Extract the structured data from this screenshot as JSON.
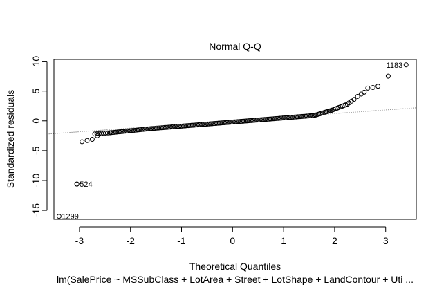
{
  "chart_data": {
    "type": "scatter",
    "title": "Normal Q-Q",
    "xlabel": "Theoretical Quantiles",
    "ylabel": "Standardized residuals",
    "subtitle": "lm(SalePrice ~ MSSubClass + LotArea + Street + LotShape + LandContour + Uti ...",
    "xlim": [
      -3.5,
      3.6
    ],
    "ylim": [
      -16.5,
      10.3
    ],
    "x_ticks": [
      -3,
      -2,
      -1,
      0,
      1,
      2,
      3
    ],
    "y_ticks": [
      -15,
      -10,
      -5,
      0,
      5,
      10
    ],
    "grid": false,
    "reference_line": {
      "x": [
        -3.6,
        3.6
      ],
      "y": [
        -2.2,
        2.2
      ],
      "style": "dotted"
    },
    "labeled_points": [
      {
        "label": "1183",
        "x": 3.4,
        "y": 9.4
      },
      {
        "label": "524",
        "x": -3.05,
        "y": -10.6
      },
      {
        "label": "1299",
        "x": -3.4,
        "y": -16.0
      }
    ],
    "point_segments": [
      {
        "x0": -2.7,
        "x1": -2.4,
        "y0": -2.2,
        "y1": -2.0,
        "n": 8
      },
      {
        "x0": -2.4,
        "x1": -1.6,
        "y0": -2.0,
        "y1": -1.3,
        "n": 28
      },
      {
        "x0": -1.6,
        "x1": 1.6,
        "y0": -1.3,
        "y1": 0.9,
        "n": 110
      },
      {
        "x0": 1.6,
        "x1": 1.95,
        "y0": 0.9,
        "y1": 1.8,
        "n": 14
      },
      {
        "x0": 1.95,
        "x1": 2.25,
        "y0": 1.8,
        "y1": 2.8,
        "n": 10
      }
    ],
    "points": [
      [
        -3.05,
        -10.6
      ],
      [
        -2.95,
        -3.5
      ],
      [
        -2.85,
        -3.3
      ],
      [
        -2.75,
        -3.1
      ],
      [
        -2.65,
        -2.5
      ],
      [
        2.28,
        3.0
      ],
      [
        2.33,
        3.3
      ],
      [
        2.38,
        3.6
      ],
      [
        2.45,
        4.1
      ],
      [
        2.52,
        4.5
      ],
      [
        2.58,
        4.8
      ],
      [
        2.65,
        5.5
      ],
      [
        2.75,
        5.6
      ],
      [
        2.85,
        5.8
      ],
      [
        3.05,
        7.5
      ]
    ]
  }
}
